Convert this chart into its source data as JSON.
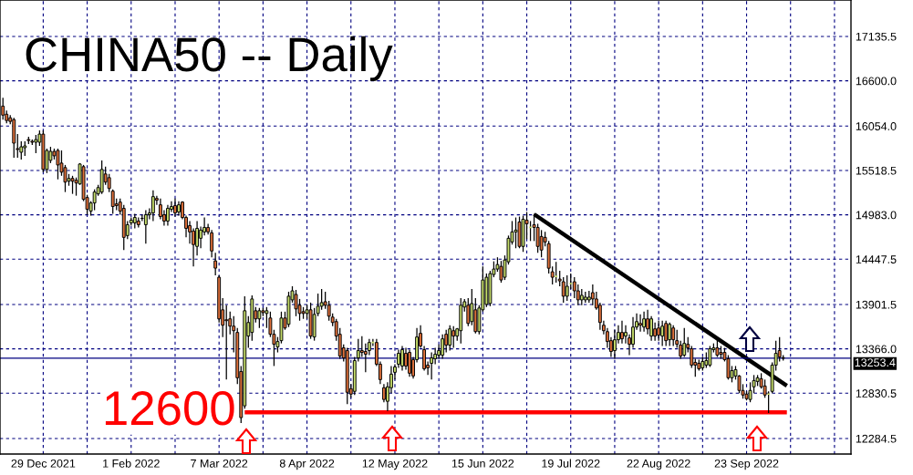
{
  "chart_data": {
    "type": "candlestick",
    "title": "CHINA50 -- Daily",
    "categories": [
      null,
      null,
      null,
      null,
      null,
      null,
      null,
      null,
      null,
      null,
      null,
      "29 Dec 2021",
      null,
      null,
      null,
      null,
      null,
      null,
      null,
      null,
      null,
      null,
      null,
      null,
      null,
      null,
      null,
      null,
      null,
      null,
      null,
      null,
      null,
      null,
      null,
      "1 Feb 2022",
      null,
      null,
      null,
      null,
      null,
      null,
      null,
      null,
      null,
      null,
      null,
      null,
      null,
      null,
      null,
      null,
      null,
      null,
      null,
      null,
      null,
      null,
      null,
      "7 Mar 2022",
      null,
      null,
      null,
      null,
      null,
      null,
      null,
      null,
      null,
      null,
      null,
      null,
      null,
      null,
      null,
      null,
      null,
      null,
      null,
      null,
      null,
      null,
      null,
      "8 Apr 2022",
      null,
      null,
      null,
      null,
      null,
      null,
      null,
      null,
      null,
      null,
      null,
      null,
      null,
      null,
      null,
      null,
      null,
      null,
      null,
      null,
      null,
      null,
      null,
      "12 May 2022",
      null,
      null,
      null,
      null,
      null,
      null,
      null,
      null,
      null,
      null,
      null,
      null,
      null,
      null,
      null,
      null,
      null,
      null,
      null,
      null,
      null,
      null,
      null,
      "15 Jun 2022",
      null,
      null,
      null,
      null,
      null,
      null,
      null,
      null,
      null,
      null,
      null,
      null,
      null,
      null,
      null,
      null,
      null,
      null,
      null,
      null,
      null,
      null,
      null,
      "19 Jul 2022",
      null,
      null,
      null,
      null,
      null,
      null,
      null,
      null,
      null,
      null,
      null,
      null,
      null,
      null,
      null,
      null,
      null,
      null,
      null,
      null,
      null,
      null,
      null,
      "22 Aug 2022",
      null,
      null,
      null,
      null,
      null,
      null,
      null,
      null,
      null,
      null,
      null,
      null,
      null,
      null,
      null,
      null,
      null,
      null,
      null,
      null,
      null,
      null,
      null,
      "23 Sep 2022",
      null,
      null,
      null,
      null,
      null,
      null,
      null,
      null,
      null,
      null,
      null,
      null,
      null,
      null,
      null,
      null,
      null,
      null,
      null,
      null,
      null,
      null,
      null,
      null,
      null,
      null,
      null,
      null
    ],
    "ohlc": [
      [
        16295,
        16394,
        16132,
        16186
      ],
      [
        16197,
        16241,
        16088,
        16121
      ],
      [
        16154,
        16186,
        16077,
        16110
      ],
      [
        16132,
        16154,
        15673,
        15848
      ],
      [
        15782,
        15957,
        15673,
        15771
      ],
      [
        15738,
        15870,
        15651,
        15804
      ],
      [
        15793,
        15870,
        15695,
        15815
      ],
      [
        15891,
        15924,
        15837,
        15880
      ],
      [
        15870,
        15891,
        15826,
        15859
      ],
      [
        15859,
        15946,
        15728,
        15891
      ],
      [
        15859,
        16001,
        15815,
        15957
      ],
      [
        15957,
        16001,
        15498,
        15531
      ],
      [
        15531,
        15782,
        15487,
        15760
      ],
      [
        15640,
        15804,
        15607,
        15749
      ],
      [
        15749,
        15782,
        15651,
        15695
      ],
      [
        15760,
        15782,
        15411,
        15585
      ],
      [
        15607,
        15760,
        15454,
        15498
      ],
      [
        15553,
        15585,
        15258,
        15378
      ],
      [
        15389,
        15476,
        15334,
        15422
      ],
      [
        15422,
        15454,
        15236,
        15389
      ],
      [
        15400,
        15433,
        15214,
        15367
      ],
      [
        15356,
        15607,
        15345,
        15596
      ],
      [
        15564,
        15585,
        15148,
        15170
      ],
      [
        15192,
        15225,
        14984,
        15050
      ],
      [
        15028,
        15148,
        14973,
        15126
      ],
      [
        15126,
        15290,
        15039,
        15258
      ],
      [
        15236,
        15345,
        15214,
        15312
      ],
      [
        15258,
        15640,
        15236,
        15531
      ],
      [
        15476,
        15564,
        15345,
        15378
      ],
      [
        15432,
        15476,
        15258,
        15301
      ],
      [
        15269,
        15290,
        14995,
        15083
      ],
      [
        15115,
        15181,
        15039,
        15094
      ],
      [
        15137,
        15181,
        14984,
        15028
      ],
      [
        15061,
        15104,
        14558,
        14711
      ],
      [
        14733,
        14908,
        14689,
        14864
      ],
      [
        14886,
        14951,
        14853,
        14919
      ],
      [
        14886,
        14995,
        14820,
        14951
      ],
      [
        14908,
        14951,
        14831,
        14864
      ],
      [
        14940,
        14984,
        14908,
        14941
      ],
      [
        14864,
        15039,
        14635,
        14984
      ],
      [
        14984,
        15061,
        14930,
        15006
      ],
      [
        15006,
        15279,
        14908,
        15203
      ],
      [
        15181,
        15214,
        15104,
        15159
      ],
      [
        15104,
        15181,
        14930,
        14962
      ],
      [
        14984,
        15039,
        14853,
        14908
      ],
      [
        14908,
        15104,
        14853,
        15061
      ],
      [
        15050,
        15148,
        15017,
        15083
      ],
      [
        15094,
        15181,
        14962,
        15006
      ],
      [
        15017,
        15148,
        14973,
        15104
      ],
      [
        15137,
        15148,
        14930,
        14951
      ],
      [
        14951,
        14973,
        14711,
        14820
      ],
      [
        14853,
        14908,
        14635,
        14777
      ],
      [
        14788,
        14820,
        14361,
        14624
      ],
      [
        14602,
        14908,
        14493,
        14820
      ],
      [
        14700,
        14842,
        14580,
        14799
      ],
      [
        14777,
        14951,
        14733,
        14831
      ],
      [
        14831,
        14875,
        14744,
        14777
      ],
      [
        14766,
        14799,
        14471,
        14547
      ],
      [
        14427,
        14525,
        14252,
        14340
      ],
      [
        14230,
        14252,
        13684,
        13728
      ],
      [
        13837,
        13979,
        13509,
        13651
      ],
      [
        13717,
        13892,
        12995,
        13706
      ],
      [
        13728,
        13815,
        13542,
        13640
      ],
      [
        13640,
        13760,
        13323,
        13585
      ],
      [
        13564,
        13618,
        12940,
        13017
      ],
      [
        13093,
        13159,
        12470,
        12536
      ],
      [
        12678,
        13999,
        12645,
        13826
      ],
      [
        13520,
        13760,
        13378,
        13684
      ],
      [
        13564,
        14012,
        13465,
        13968
      ],
      [
        13826,
        13870,
        13684,
        13728
      ],
      [
        13728,
        13859,
        13618,
        13826
      ],
      [
        13826,
        13859,
        13760,
        13804
      ],
      [
        13793,
        13870,
        13618,
        13826
      ],
      [
        13738,
        13815,
        13509,
        13542
      ],
      [
        13542,
        13596,
        13159,
        13421
      ],
      [
        13389,
        13509,
        13323,
        13454
      ],
      [
        13465,
        13815,
        13432,
        13738
      ],
      [
        13738,
        13815,
        13596,
        13618
      ],
      [
        13662,
        14055,
        13629,
        14001
      ],
      [
        13957,
        14121,
        13924,
        14066
      ],
      [
        14023,
        14077,
        13760,
        13848
      ],
      [
        13892,
        13968,
        13706,
        13793
      ],
      [
        13815,
        13870,
        13728,
        13793
      ],
      [
        13793,
        13902,
        13728,
        13837
      ],
      [
        13837,
        13924,
        13487,
        13520
      ],
      [
        13509,
        13859,
        13465,
        13782
      ],
      [
        13793,
        14033,
        13760,
        13880
      ],
      [
        13880,
        14088,
        13837,
        13924
      ],
      [
        13935,
        14055,
        13848,
        13892
      ],
      [
        13892,
        13946,
        13706,
        13760
      ],
      [
        13749,
        13793,
        13640,
        13684
      ],
      [
        13695,
        13728,
        13465,
        13520
      ],
      [
        13542,
        13618,
        13246,
        13279
      ],
      [
        13378,
        13421,
        13214,
        13257
      ],
      [
        13345,
        13378,
        12700,
        12842
      ],
      [
        12886,
        12940,
        12776,
        12820
      ],
      [
        12853,
        13268,
        12809,
        13224
      ],
      [
        13257,
        13487,
        13214,
        13345
      ],
      [
        13345,
        13520,
        13268,
        13323
      ],
      [
        13334,
        13432,
        13083,
        13301
      ],
      [
        13345,
        13487,
        13290,
        13443
      ],
      [
        13443,
        13487,
        13400,
        13443
      ],
      [
        13443,
        13487,
        13159,
        13181
      ],
      [
        13181,
        13214,
        12940,
        12995
      ],
      [
        12897,
        12940,
        12722,
        12755
      ],
      [
        12733,
        12962,
        12613,
        12908
      ],
      [
        12897,
        13159,
        12831,
        13061
      ],
      [
        13083,
        13181,
        12995,
        13148
      ],
      [
        13181,
        13356,
        13137,
        13312
      ],
      [
        13159,
        13400,
        13104,
        13356
      ],
      [
        13312,
        13378,
        13115,
        13159
      ],
      [
        13323,
        13356,
        13028,
        13072
      ],
      [
        13236,
        13268,
        13006,
        13039
      ],
      [
        13236,
        13618,
        13203,
        13509
      ],
      [
        13553,
        13651,
        13378,
        13400
      ],
      [
        13356,
        13400,
        13104,
        13126
      ],
      [
        13170,
        13214,
        13050,
        13137
      ],
      [
        13192,
        13323,
        12995,
        13257
      ],
      [
        13246,
        13378,
        13181,
        13301
      ],
      [
        13290,
        13421,
        13246,
        13345
      ],
      [
        13290,
        13542,
        13246,
        13487
      ],
      [
        13542,
        13596,
        13323,
        13411
      ],
      [
        13411,
        13651,
        13345,
        13607
      ],
      [
        13585,
        13640,
        13378,
        13520
      ],
      [
        13520,
        13618,
        13465,
        13607
      ],
      [
        13585,
        13979,
        13432,
        13892
      ],
      [
        13870,
        13968,
        13815,
        13935
      ],
      [
        13892,
        13979,
        13640,
        13673
      ],
      [
        13695,
        14088,
        13651,
        13913
      ],
      [
        13837,
        13979,
        13553,
        13574
      ],
      [
        13574,
        13892,
        13542,
        13859
      ],
      [
        13837,
        14361,
        13815,
        14197
      ],
      [
        13902,
        14274,
        13870,
        14230
      ],
      [
        13913,
        14307,
        13881,
        14274
      ],
      [
        14263,
        14422,
        14230,
        14329
      ],
      [
        14329,
        14471,
        14296,
        14383
      ],
      [
        14361,
        14427,
        14165,
        14197
      ],
      [
        14230,
        14493,
        14197,
        14438
      ],
      [
        14416,
        14733,
        14383,
        14700
      ],
      [
        14656,
        14908,
        14624,
        14777
      ],
      [
        14777,
        14951,
        14580,
        14799
      ],
      [
        14897,
        14962,
        14580,
        14602
      ],
      [
        14602,
        14973,
        14536,
        14930
      ],
      [
        14919,
        15017,
        14689,
        14875
      ],
      [
        14831,
        14908,
        14667,
        14831
      ],
      [
        14864,
        14995,
        14667,
        14831
      ],
      [
        14831,
        14875,
        14525,
        14602
      ],
      [
        14722,
        14799,
        14471,
        14558
      ],
      [
        14711,
        14777,
        14602,
        14656
      ],
      [
        14635,
        14667,
        14274,
        14339
      ],
      [
        14296,
        14361,
        14143,
        14230
      ],
      [
        14241,
        14416,
        14165,
        14241
      ],
      [
        14208,
        14307,
        14121,
        14186
      ],
      [
        14176,
        14230,
        13924,
        14001
      ],
      [
        14001,
        14252,
        13946,
        14121
      ],
      [
        14154,
        14274,
        14088,
        14154
      ],
      [
        14176,
        14230,
        13979,
        14066
      ],
      [
        14066,
        14143,
        13892,
        13957
      ],
      [
        13957,
        14088,
        13892,
        14012
      ],
      [
        13957,
        14055,
        13924,
        13990
      ],
      [
        13957,
        14066,
        13924,
        13990
      ],
      [
        14044,
        14143,
        13892,
        13968
      ],
      [
        13968,
        14055,
        13837,
        13859
      ],
      [
        13892,
        13924,
        13596,
        13684
      ],
      [
        13651,
        13706,
        13542,
        13585
      ],
      [
        13574,
        13618,
        13378,
        13454
      ],
      [
        13465,
        13509,
        13268,
        13334
      ],
      [
        13345,
        13596,
        13246,
        13476
      ],
      [
        13476,
        13651,
        13432,
        13564
      ],
      [
        13564,
        13706,
        13432,
        13487
      ],
      [
        13520,
        13651,
        13432,
        13564
      ],
      [
        13498,
        13542,
        13290,
        13421
      ],
      [
        13421,
        13749,
        13378,
        13629
      ],
      [
        13629,
        13793,
        13596,
        13695
      ],
      [
        13673,
        13782,
        13574,
        13651
      ],
      [
        13629,
        13815,
        13574,
        13728
      ],
      [
        13728,
        13837,
        13542,
        13607
      ],
      [
        13520,
        13760,
        13465,
        13728
      ],
      [
        13607,
        13684,
        13465,
        13520
      ],
      [
        13618,
        13706,
        13465,
        13531
      ],
      [
        13520,
        13706,
        13400,
        13640
      ],
      [
        13673,
        13706,
        13400,
        13465
      ],
      [
        13476,
        13684,
        13400,
        13662
      ],
      [
        13618,
        13651,
        13400,
        13476
      ],
      [
        13465,
        13596,
        13378,
        13421
      ],
      [
        13411,
        13465,
        13246,
        13279
      ],
      [
        13290,
        13618,
        13268,
        13432
      ],
      [
        13421,
        13509,
        13323,
        13378
      ],
      [
        13367,
        13400,
        13137,
        13170
      ],
      [
        13203,
        13246,
        13028,
        13170
      ],
      [
        13192,
        13236,
        13104,
        13126
      ],
      [
        13137,
        13268,
        13104,
        13214
      ],
      [
        13170,
        13323,
        13137,
        13225
      ],
      [
        13170,
        13400,
        13148,
        13367
      ],
      [
        13356,
        13432,
        13323,
        13378
      ],
      [
        13378,
        13509,
        13268,
        13290
      ],
      [
        13323,
        13400,
        13246,
        13301
      ],
      [
        13323,
        13378,
        13214,
        13236
      ],
      [
        13246,
        13290,
        12995,
        13017
      ],
      [
        13017,
        13159,
        12962,
        13104
      ],
      [
        13039,
        13159,
        12995,
        13115
      ],
      [
        13039,
        13050,
        12831,
        12864
      ],
      [
        12864,
        12940,
        12765,
        12809
      ],
      [
        12820,
        12853,
        12744,
        12765
      ],
      [
        12755,
        12962,
        12722,
        12864
      ],
      [
        12908,
        13050,
        12831,
        12984
      ],
      [
        12973,
        13050,
        12918,
        13017
      ],
      [
        13006,
        13072,
        12886,
        12908
      ],
      [
        12918,
        12995,
        12776,
        12809
      ],
      [
        12820,
        12853,
        12591,
        12820
      ],
      [
        12853,
        13203,
        12831,
        13170
      ],
      [
        13170,
        13465,
        13104,
        13312
      ],
      [
        13345,
        13509,
        13214,
        13268
      ],
      [
        13260,
        13290,
        13225,
        13253
      ],
      null,
      null,
      null,
      null,
      null,
      null,
      null,
      null,
      null,
      null,
      null,
      null,
      null,
      null,
      null,
      null,
      null,
      null
    ],
    "colors": [
      "#e0703a",
      "#e0703a",
      "#e0703a",
      "#e0703a",
      "#e0703a",
      "#c6de6b",
      "#c6de6b",
      "#e0703a",
      "#e0703a",
      "#c6de6b",
      "#c6de6b",
      "#e0703a",
      "#c6de6b",
      "#c6de6b",
      "#e0703a",
      "#e0703a",
      "#e0703a",
      "#e0703a",
      "#c6de6b",
      "#e0703a",
      "#e0703a",
      "#c6de6b",
      "#e0703a",
      "#e0703a",
      "#c6de6b",
      "#c6de6b",
      "#c6de6b",
      "#c6de6b",
      "#e0703a",
      "#e0703a",
      "#e0703a",
      "#e0703a",
      "#e0703a",
      "#e0703a",
      "#c6de6b",
      "#c6de6b",
      "#c6de6b",
      "#e0703a",
      "#c6de6b",
      "#c6de6b",
      "#c6de6b",
      "#c6de6b",
      "#e0703a",
      "#e0703a",
      "#e0703a",
      "#c6de6b",
      "#c6de6b",
      "#e0703a",
      "#c6de6b",
      "#e0703a",
      "#e0703a",
      "#e0703a",
      "#e0703a",
      "#c6de6b",
      "#c6de6b",
      "#c6de6b",
      "#e0703a",
      "#e0703a",
      "#e0703a",
      "#e0703a",
      "#e0703a",
      "#e0703a",
      "#e0703a",
      "#e0703a",
      "#e0703a",
      "#e0703a",
      "#c6de6b",
      "#c6de6b",
      "#c6de6b",
      "#e0703a",
      "#c6de6b",
      "#e0703a",
      "#c6de6b",
      "#e0703a",
      "#e0703a",
      "#c6de6b",
      "#c6de6b",
      "#e0703a",
      "#c6de6b",
      "#c6de6b",
      "#e0703a",
      "#e0703a",
      "#e0703a",
      "#c6de6b",
      "#e0703a",
      "#c6de6b",
      "#c6de6b",
      "#c6de6b",
      "#e0703a",
      "#e0703a",
      "#e0703a",
      "#e0703a",
      "#e0703a",
      "#e0703a",
      "#e0703a",
      "#e0703a",
      "#c6de6b",
      "#c6de6b",
      "#e0703a",
      "#e0703a",
      "#c6de6b",
      "#c6de6b",
      "#e0703a",
      "#e0703a",
      "#e0703a",
      "#c6de6b",
      "#c6de6b",
      "#c6de6b",
      "#c6de6b",
      "#c6de6b",
      "#e0703a",
      "#e0703a",
      "#e0703a",
      "#c6de6b",
      "#e0703a",
      "#e0703a",
      "#e0703a",
      "#c6de6b",
      "#c6de6b",
      "#c6de6b",
      "#c6de6b",
      "#e0703a",
      "#c6de6b",
      "#e0703a",
      "#c6de6b",
      "#c6de6b",
      "#c6de6b",
      "#e0703a",
      "#c6de6b",
      "#e0703a",
      "#c6de6b",
      "#c6de6b",
      "#c6de6b",
      "#c6de6b",
      "#c6de6b",
      "#c6de6b",
      "#e0703a",
      "#c6de6b",
      "#c6de6b",
      "#c6de6b",
      "#c6de6b",
      "#e0703a",
      "#c6de6b",
      "#e0703a",
      "#c6de6b",
      "#e0703a",
      "#e0703a",
      "#e0703a",
      "#e0703a",
      "#e0703a",
      "#e0703a",
      "#c6de6b",
      "#e0703a",
      "#e0703a",
      "#c6de6b",
      "#c6de6b",
      "#e0703a",
      "#e0703a",
      "#c6de6b",
      "#c6de6b",
      "#c6de6b",
      "#e0703a",
      "#e0703a",
      "#e0703a",
      "#e0703a",
      "#e0703a",
      "#e0703a",
      "#c6de6b",
      "#c6de6b",
      "#e0703a",
      "#c6de6b",
      "#e0703a",
      "#c6de6b",
      "#c6de6b",
      "#e0703a",
      "#c6de6b",
      "#e0703a",
      "#c6de6b",
      "#e0703a",
      "#e0703a",
      "#c6de6b",
      "#e0703a",
      "#c6de6b",
      "#e0703a",
      "#e0703a",
      "#e0703a",
      "#c6de6b",
      "#e0703a",
      "#e0703a",
      "#e0703a",
      "#e0703a",
      "#c6de6b",
      "#c6de6b",
      "#c6de6b",
      "#c6de6b",
      "#e0703a",
      "#e0703a",
      "#e0703a",
      "#e0703a",
      "#c6de6b",
      "#c6de6b",
      "#e0703a",
      "#e0703a",
      "#e0703a",
      "#c6de6b",
      "#c6de6b",
      "#c6de6b",
      "#e0703a",
      "#e0703a",
      "#c6de6b",
      "#c6de6b",
      "#c6de6b",
      "#e0703a",
      "#e0703a",
      null,
      null,
      null,
      null,
      null,
      null,
      null,
      null,
      null,
      null,
      null,
      null,
      null,
      null,
      null,
      null,
      null,
      null
    ],
    "series": [
      {
        "type": "line",
        "color": "#000000",
        "values": [
          null,
          null,
          null,
          null,
          null,
          null,
          null,
          null,
          null,
          null,
          null,
          null,
          null,
          null,
          null,
          null,
          null,
          null,
          null,
          null,
          null,
          null,
          null,
          null,
          null,
          null,
          null,
          null,
          null,
          null,
          null,
          null,
          null,
          null,
          null,
          null,
          null,
          null,
          null,
          null,
          null,
          null,
          null,
          null,
          null,
          null,
          null,
          null,
          null,
          null,
          null,
          null,
          null,
          null,
          null,
          null,
          null,
          null,
          null,
          null,
          null,
          null,
          null,
          null,
          null,
          null,
          null,
          null,
          null,
          null,
          null,
          null,
          null,
          null,
          null,
          null,
          null,
          null,
          null,
          null,
          null,
          null,
          null,
          null,
          null,
          null,
          null,
          null,
          null,
          null,
          null,
          null,
          null,
          null,
          null,
          null,
          null,
          null,
          null,
          null,
          null,
          null,
          null,
          null,
          null,
          null,
          null,
          null,
          null,
          null,
          null,
          null,
          null,
          null,
          null,
          null,
          null,
          null,
          null,
          null,
          null,
          null,
          null,
          null,
          null,
          null,
          null,
          null,
          null,
          null,
          null,
          null,
          null,
          null,
          null,
          null,
          null,
          null,
          null,
          null,
          null,
          null,
          null,
          null,
          null,
          14990,
          null,
          null,
          null,
          null,
          null,
          null,
          null,
          null,
          null,
          null,
          null,
          null,
          null,
          null,
          null,
          null,
          null,
          null,
          null,
          null,
          null,
          null,
          null,
          null,
          null,
          null,
          null,
          null,
          null,
          null,
          null,
          null,
          null,
          null,
          null,
          null,
          null,
          null,
          null,
          null,
          null,
          null,
          null,
          null,
          null,
          null,
          null,
          null,
          null,
          null,
          null,
          null,
          null,
          null,
          null,
          null,
          null,
          null,
          null,
          null,
          null,
          null,
          null,
          null,
          null,
          null,
          null,
          null,
          12920,
          null,
          null,
          null,
          null,
          null,
          null,
          null,
          null,
          null,
          null,
          null,
          null,
          null,
          null,
          null,
          null,
          null
        ]
      },
      {
        "type": "line",
        "name": "12600",
        "color": "#ff0000",
        "values": [
          null,
          null,
          null,
          null,
          null,
          null,
          null,
          null,
          null,
          null,
          null,
          null,
          null,
          null,
          null,
          null,
          null,
          null,
          null,
          null,
          null,
          null,
          null,
          null,
          null,
          null,
          null,
          null,
          null,
          null,
          null,
          null,
          null,
          null,
          null,
          null,
          null,
          null,
          null,
          null,
          null,
          null,
          null,
          null,
          null,
          null,
          null,
          null,
          null,
          null,
          null,
          null,
          null,
          null,
          null,
          null,
          null,
          null,
          null,
          null,
          null,
          null,
          null,
          null,
          null,
          null,
          12600,
          null,
          null,
          null,
          null,
          null,
          null,
          null,
          null,
          null,
          null,
          null,
          null,
          null,
          null,
          null,
          null,
          null,
          null,
          null,
          null,
          null,
          null,
          null,
          null,
          null,
          null,
          null,
          null,
          null,
          null,
          null,
          null,
          null,
          null,
          null,
          null,
          null,
          null,
          null,
          null,
          null,
          null,
          null,
          null,
          null,
          null,
          null,
          null,
          null,
          null,
          null,
          null,
          null,
          null,
          null,
          null,
          null,
          null,
          null,
          null,
          null,
          null,
          null,
          null,
          null,
          null,
          null,
          null,
          null,
          null,
          null,
          null,
          null,
          null,
          null,
          null,
          null,
          null,
          null,
          null,
          null,
          null,
          null,
          null,
          null,
          null,
          null,
          null,
          null,
          null,
          null,
          null,
          null,
          null,
          null,
          null,
          null,
          null,
          null,
          null,
          null,
          null,
          null,
          null,
          null,
          null,
          null,
          null,
          null,
          null,
          null,
          null,
          null,
          null,
          null,
          null,
          null,
          null,
          null,
          null,
          null,
          null,
          null,
          null,
          null,
          null,
          null,
          null,
          null,
          null,
          null,
          null,
          null,
          null,
          null,
          null,
          null,
          null,
          null,
          null,
          null,
          null,
          null,
          null,
          null,
          null,
          null,
          12600,
          null,
          null,
          null,
          null,
          null,
          null,
          null,
          null,
          null,
          null,
          null,
          null,
          null,
          null,
          null,
          null,
          null
        ]
      }
    ],
    "ylim": [
      12097,
      17575
    ],
    "yticks": [
      12284.5,
      {
        "value": 12830.5,
        "label": "12830.5"
      },
      {
        "value": 13366,
        "label": "13366.0"
      },
      13901.5,
      14447.5,
      {
        "value": 14983,
        "label": "14983.0"
      },
      15518.5,
      {
        "value": 16054,
        "label": "16054.0"
      },
      {
        "value": 16600,
        "label": "16600.0"
      },
      17135.5
    ],
    "ref_lines": [
      {
        "axis": "y",
        "value": 13253.4,
        "label": "13253.4",
        "color": "#000080"
      }
    ],
    "grid": true
  }
}
